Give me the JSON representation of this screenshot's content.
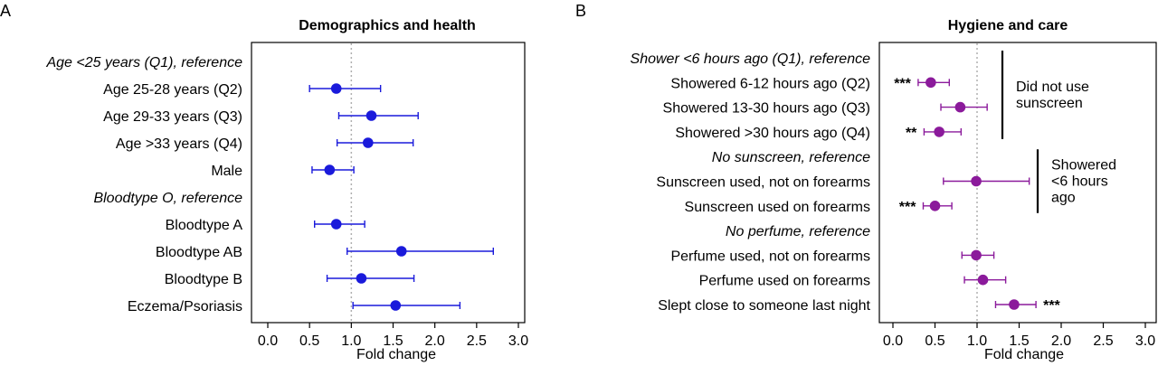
{
  "colors": {
    "panel_a": "#1a1adb",
    "panel_b": "#8b1a9b",
    "reference_line": "#b0b0b0"
  },
  "chart_data": [
    {
      "type": "forest",
      "panel": "A",
      "title": "Demographics and health",
      "xlabel": "Fold change",
      "xlim": [
        0,
        3
      ],
      "xticks": [
        "0.0",
        "0.5",
        "1.0",
        "1.5",
        "2.0",
        "2.5",
        "3.0"
      ],
      "reference_value": 1.0,
      "rows": [
        {
          "label": "Age <25 years (Q1), reference",
          "reference": true
        },
        {
          "label": "Age 25-28 years (Q2)",
          "estimate": 0.82,
          "lower": 0.5,
          "upper": 1.35
        },
        {
          "label": "Age 29-33 years (Q3)",
          "estimate": 1.24,
          "lower": 0.85,
          "upper": 1.8
        },
        {
          "label": "Age >33 years (Q4)",
          "estimate": 1.2,
          "lower": 0.83,
          "upper": 1.74
        },
        {
          "label": "Male",
          "estimate": 0.74,
          "lower": 0.53,
          "upper": 1.03
        },
        {
          "label": "Bloodtype O, reference",
          "reference": true
        },
        {
          "label": "Bloodtype A",
          "estimate": 0.82,
          "lower": 0.56,
          "upper": 1.16
        },
        {
          "label": "Bloodtype AB",
          "estimate": 1.6,
          "lower": 0.95,
          "upper": 2.7
        },
        {
          "label": "Bloodtype B",
          "estimate": 1.12,
          "lower": 0.71,
          "upper": 1.75
        },
        {
          "label": "Eczema/Psoriasis",
          "estimate": 1.53,
          "lower": 1.02,
          "upper": 2.3
        }
      ]
    },
    {
      "type": "forest",
      "panel": "B",
      "title": "Hygiene and care",
      "xlabel": "Fold change",
      "xlim": [
        0,
        3
      ],
      "xticks": [
        "0.0",
        "0.5",
        "1.0",
        "1.5",
        "2.0",
        "2.5",
        "3.0"
      ],
      "reference_value": 1.0,
      "rows": [
        {
          "label": "Shower <6 hours ago (Q1), reference",
          "reference": true
        },
        {
          "label": "Showered 6-12 hours ago (Q2)",
          "estimate": 0.45,
          "lower": 0.3,
          "upper": 0.67,
          "significance": "***",
          "sig_side": "left"
        },
        {
          "label": "Showered 13-30 hours ago (Q3)",
          "estimate": 0.8,
          "lower": 0.57,
          "upper": 1.12
        },
        {
          "label": "Showered >30 hours ago (Q4)",
          "estimate": 0.55,
          "lower": 0.37,
          "upper": 0.81,
          "significance": "**",
          "sig_side": "left"
        },
        {
          "label": "No sunscreen, reference",
          "reference": true
        },
        {
          "label": "Sunscreen used, not on forearms",
          "estimate": 0.99,
          "lower": 0.6,
          "upper": 1.62
        },
        {
          "label": "Sunscreen used on forearms",
          "estimate": 0.5,
          "lower": 0.36,
          "upper": 0.7,
          "significance": "***",
          "sig_side": "left"
        },
        {
          "label": "No perfume, reference",
          "reference": true
        },
        {
          "label": "Perfume used, not on forearms",
          "estimate": 0.99,
          "lower": 0.82,
          "upper": 1.2
        },
        {
          "label": "Perfume used on forearms",
          "estimate": 1.07,
          "lower": 0.85,
          "upper": 1.34
        },
        {
          "label": "Slept close to someone last night",
          "estimate": 1.44,
          "lower": 1.22,
          "upper": 1.7,
          "significance": "***",
          "sig_side": "right"
        }
      ],
      "brackets": [
        {
          "label_lines": [
            "Did not use",
            "sunscreen"
          ],
          "from_row": 0,
          "to_row": 3
        },
        {
          "label_lines": [
            "Showered",
            "<6 hours",
            "ago"
          ],
          "from_row": 4,
          "to_row": 6
        }
      ]
    }
  ]
}
